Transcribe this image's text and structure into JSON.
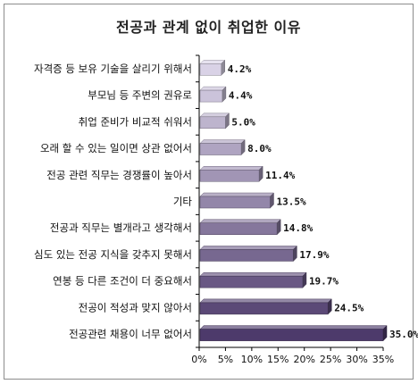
{
  "chart_data": {
    "type": "bar",
    "orientation": "horizontal",
    "title": "전공과 관계 없이 취업한 이유",
    "categories": [
      "자격증 등 보유 기술을 살리기 위해서",
      "부모님 등 주변의 권유로",
      "취업 준비가 비교적 쉬워서",
      "오래 할 수 있는 일이면 상관 없어서",
      "전공 관련 직무는 경쟁률이 높아서",
      "기타",
      "전공과 직무는 별개라고 생각해서",
      "심도 있는 전공 지식을 갖추지 못해서",
      "연봉 등 다른 조건이 더 중요해서",
      "전공이 적성과 맞지 않아서",
      "전공관련 채용이 너무 없어서"
    ],
    "values": [
      4.2,
      4.4,
      5.0,
      8.0,
      11.4,
      13.5,
      14.8,
      17.9,
      19.7,
      24.5,
      35.0
    ],
    "value_labels": [
      "4.2%",
      "4.4%",
      "5.0%",
      "8.0%",
      "11.4%",
      "13.5%",
      "14.8%",
      "17.9%",
      "19.7%",
      "24.5%",
      "35.0%"
    ],
    "xlim": [
      0,
      35
    ],
    "x_ticks": [
      "0%",
      "5%",
      "10%",
      "15%",
      "20%",
      "25%",
      "30%",
      "35%"
    ],
    "xlabel": "",
    "ylabel": "",
    "grid": false,
    "colors": {
      "bar_light": "#d9d2e6",
      "bar_dark": "#4d3a6b",
      "axis": "#000000",
      "frame": "#8c8c8c"
    }
  }
}
